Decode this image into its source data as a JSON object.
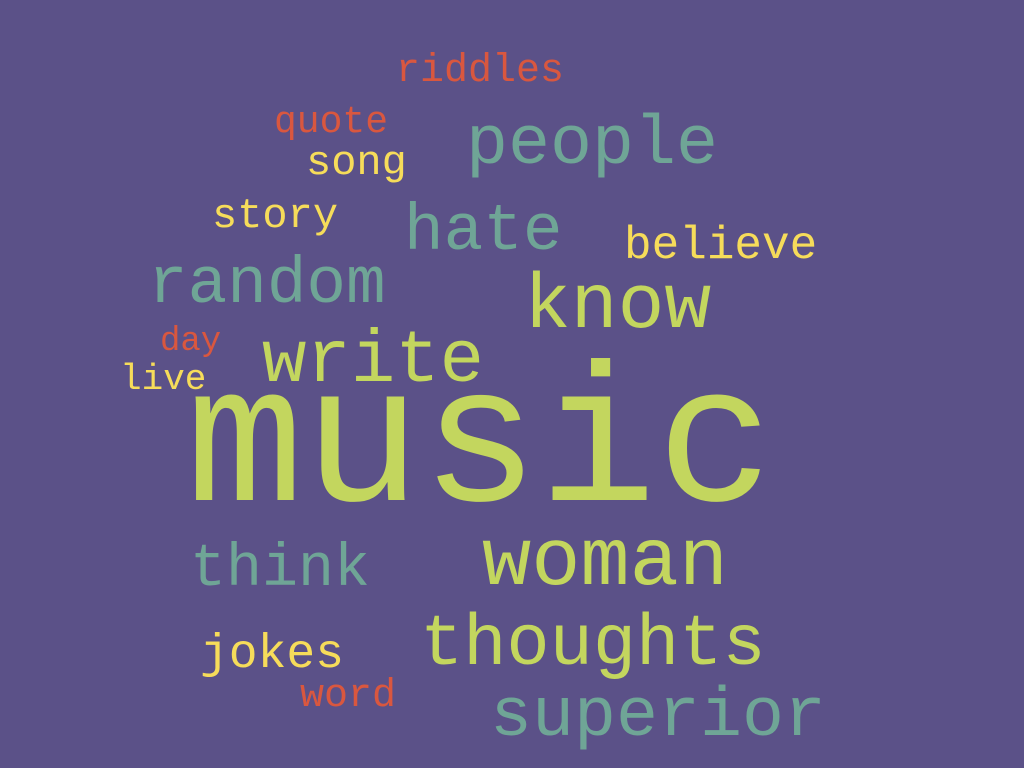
{
  "background": "#5b5188",
  "palette": {
    "green": "#c3d65e",
    "teal": "#6fa596",
    "yellow": "#f6dc5a",
    "red": "#d9573f"
  },
  "words": [
    {
      "id": "music",
      "text": "music",
      "color": "green"
    },
    {
      "id": "woman",
      "text": "woman",
      "color": "green"
    },
    {
      "id": "superior",
      "text": "superior",
      "color": "teal"
    },
    {
      "id": "thoughts",
      "text": "thoughts",
      "color": "green"
    },
    {
      "id": "people",
      "text": "people",
      "color": "teal"
    },
    {
      "id": "know",
      "text": "know",
      "color": "green"
    },
    {
      "id": "write",
      "text": "write",
      "color": "green"
    },
    {
      "id": "random",
      "text": "random",
      "color": "teal"
    },
    {
      "id": "hate",
      "text": "hate",
      "color": "teal"
    },
    {
      "id": "think",
      "text": "think",
      "color": "teal"
    },
    {
      "id": "believe",
      "text": "believe",
      "color": "yellow"
    },
    {
      "id": "story",
      "text": "story",
      "color": "yellow"
    },
    {
      "id": "song",
      "text": "song",
      "color": "yellow"
    },
    {
      "id": "jokes",
      "text": "jokes",
      "color": "yellow"
    },
    {
      "id": "live",
      "text": "live",
      "color": "yellow"
    },
    {
      "id": "riddles",
      "text": "riddles",
      "color": "red"
    },
    {
      "id": "quote",
      "text": "quote",
      "color": "red"
    },
    {
      "id": "day",
      "text": "day",
      "color": "red"
    },
    {
      "id": "word",
      "text": "word",
      "color": "red"
    }
  ]
}
